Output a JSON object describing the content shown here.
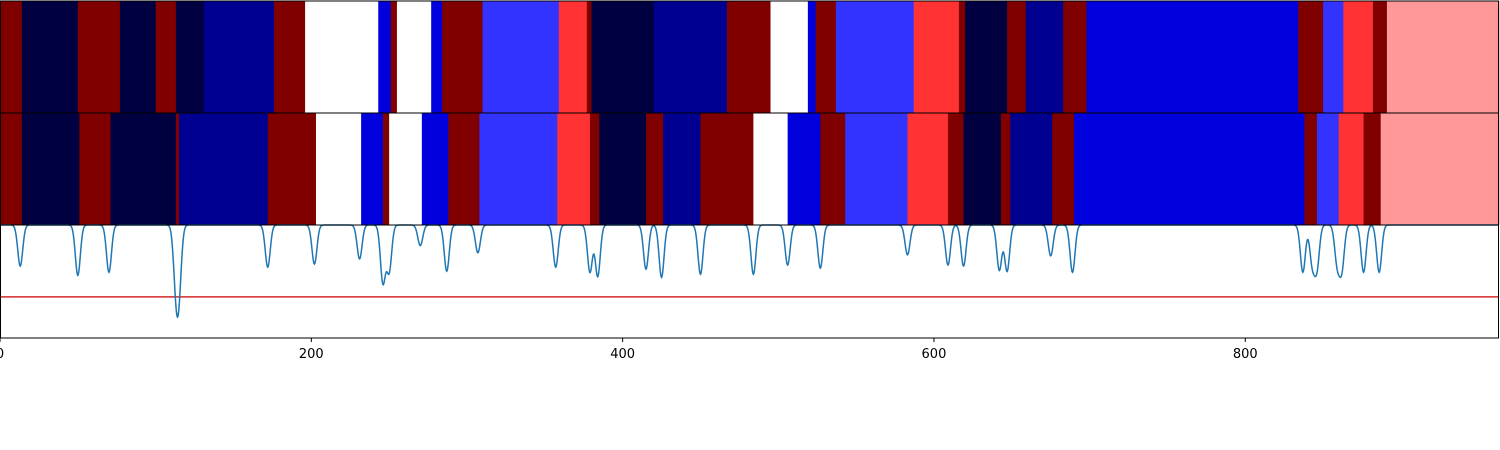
{
  "chart_data": {
    "type": "heatmap",
    "xlim": [
      0,
      963
    ],
    "x_ticks": [
      0,
      200,
      400,
      600,
      800
    ],
    "x_tick_labels": [
      "0",
      "200",
      "400",
      "600",
      "800"
    ],
    "grid": false,
    "legend": "none",
    "colors": {
      "axes": "#000000",
      "signal": "#1f77b4",
      "threshold": "#d62728"
    },
    "strips": [
      {
        "name": "strip-top",
        "segments": [
          {
            "start": 0,
            "end": 14,
            "color": "#800000"
          },
          {
            "start": 14,
            "end": 50,
            "color": "#000040"
          },
          {
            "start": 50,
            "end": 77,
            "color": "#800000"
          },
          {
            "start": 77,
            "end": 100,
            "color": "#000040"
          },
          {
            "start": 100,
            "end": 113,
            "color": "#800000"
          },
          {
            "start": 113,
            "end": 131,
            "color": "#000040"
          },
          {
            "start": 131,
            "end": 176,
            "color": "#000090"
          },
          {
            "start": 176,
            "end": 196,
            "color": "#800000"
          },
          {
            "start": 196,
            "end": 243,
            "color": "#ffffff"
          },
          {
            "start": 243,
            "end": 251,
            "color": "#0000dd"
          },
          {
            "start": 251,
            "end": 255,
            "color": "#800000"
          },
          {
            "start": 255,
            "end": 277,
            "color": "#ffffff"
          },
          {
            "start": 277,
            "end": 284,
            "color": "#0000dd"
          },
          {
            "start": 284,
            "end": 310,
            "color": "#800000"
          },
          {
            "start": 310,
            "end": 359,
            "color": "#3333ff"
          },
          {
            "start": 359,
            "end": 377,
            "color": "#ff3333"
          },
          {
            "start": 377,
            "end": 380,
            "color": "#800000"
          },
          {
            "start": 380,
            "end": 420,
            "color": "#000040"
          },
          {
            "start": 420,
            "end": 467,
            "color": "#000090"
          },
          {
            "start": 467,
            "end": 495,
            "color": "#800000"
          },
          {
            "start": 495,
            "end": 519,
            "color": "#ffffff"
          },
          {
            "start": 519,
            "end": 524,
            "color": "#0000dd"
          },
          {
            "start": 524,
            "end": 537,
            "color": "#800000"
          },
          {
            "start": 537,
            "end": 587,
            "color": "#3333ff"
          },
          {
            "start": 587,
            "end": 616,
            "color": "#ff3333"
          },
          {
            "start": 616,
            "end": 620,
            "color": "#800000"
          },
          {
            "start": 620,
            "end": 647,
            "color": "#000040"
          },
          {
            "start": 647,
            "end": 659,
            "color": "#800000"
          },
          {
            "start": 659,
            "end": 683,
            "color": "#000090"
          },
          {
            "start": 683,
            "end": 698,
            "color": "#800000"
          },
          {
            "start": 698,
            "end": 834,
            "color": "#0000dd"
          },
          {
            "start": 834,
            "end": 850,
            "color": "#800000"
          },
          {
            "start": 850,
            "end": 863,
            "color": "#3333ff"
          },
          {
            "start": 863,
            "end": 882,
            "color": "#ff3333"
          },
          {
            "start": 882,
            "end": 891,
            "color": "#800000"
          },
          {
            "start": 891,
            "end": 963,
            "color": "#ff9999"
          }
        ]
      },
      {
        "name": "strip-middle",
        "segments": [
          {
            "start": 0,
            "end": 14,
            "color": "#800000"
          },
          {
            "start": 14,
            "end": 51,
            "color": "#000040"
          },
          {
            "start": 51,
            "end": 71,
            "color": "#800000"
          },
          {
            "start": 71,
            "end": 113,
            "color": "#000040"
          },
          {
            "start": 113,
            "end": 115,
            "color": "#800000"
          },
          {
            "start": 115,
            "end": 172,
            "color": "#000090"
          },
          {
            "start": 172,
            "end": 203,
            "color": "#800000"
          },
          {
            "start": 203,
            "end": 232,
            "color": "#ffffff"
          },
          {
            "start": 232,
            "end": 246,
            "color": "#0000dd"
          },
          {
            "start": 246,
            "end": 250,
            "color": "#800000"
          },
          {
            "start": 250,
            "end": 271,
            "color": "#ffffff"
          },
          {
            "start": 271,
            "end": 288,
            "color": "#0000dd"
          },
          {
            "start": 288,
            "end": 308,
            "color": "#800000"
          },
          {
            "start": 308,
            "end": 358,
            "color": "#3333ff"
          },
          {
            "start": 358,
            "end": 379,
            "color": "#ff3333"
          },
          {
            "start": 379,
            "end": 385,
            "color": "#800000"
          },
          {
            "start": 385,
            "end": 415,
            "color": "#000040"
          },
          {
            "start": 415,
            "end": 426,
            "color": "#800000"
          },
          {
            "start": 426,
            "end": 450,
            "color": "#000090"
          },
          {
            "start": 450,
            "end": 484,
            "color": "#800000"
          },
          {
            "start": 484,
            "end": 506,
            "color": "#ffffff"
          },
          {
            "start": 506,
            "end": 527,
            "color": "#0000dd"
          },
          {
            "start": 527,
            "end": 543,
            "color": "#800000"
          },
          {
            "start": 543,
            "end": 583,
            "color": "#3333ff"
          },
          {
            "start": 583,
            "end": 609,
            "color": "#ff3333"
          },
          {
            "start": 609,
            "end": 619,
            "color": "#800000"
          },
          {
            "start": 619,
            "end": 643,
            "color": "#000040"
          },
          {
            "start": 643,
            "end": 649,
            "color": "#800000"
          },
          {
            "start": 649,
            "end": 676,
            "color": "#000090"
          },
          {
            "start": 676,
            "end": 690,
            "color": "#800000"
          },
          {
            "start": 690,
            "end": 838,
            "color": "#0000dd"
          },
          {
            "start": 838,
            "end": 846,
            "color": "#800000"
          },
          {
            "start": 846,
            "end": 860,
            "color": "#3333ff"
          },
          {
            "start": 860,
            "end": 876,
            "color": "#ff3333"
          },
          {
            "start": 876,
            "end": 887,
            "color": "#800000"
          },
          {
            "start": 887,
            "end": 963,
            "color": "#ff9999"
          }
        ]
      }
    ],
    "signal": {
      "baseline": 1.0,
      "ylim": [
        -0.1,
        1.0
      ],
      "threshold": 0.3,
      "dips": [
        {
          "x": 13,
          "depth": 0.4
        },
        {
          "x": 50,
          "depth": 0.49
        },
        {
          "x": 70,
          "depth": 0.46
        },
        {
          "x": 113,
          "depth": 0.53
        },
        {
          "x": 115,
          "depth": 0.56
        },
        {
          "x": 172,
          "depth": 0.41
        },
        {
          "x": 202,
          "depth": 0.38
        },
        {
          "x": 231,
          "depth": 0.33
        },
        {
          "x": 246,
          "depth": 0.56
        },
        {
          "x": 250,
          "depth": 0.45
        },
        {
          "x": 270,
          "depth": 0.2
        },
        {
          "x": 287,
          "depth": 0.45
        },
        {
          "x": 307,
          "depth": 0.27
        },
        {
          "x": 357,
          "depth": 0.41
        },
        {
          "x": 379,
          "depth": 0.46
        },
        {
          "x": 384,
          "depth": 0.5
        },
        {
          "x": 415,
          "depth": 0.43
        },
        {
          "x": 425,
          "depth": 0.51
        },
        {
          "x": 450,
          "depth": 0.48
        },
        {
          "x": 484,
          "depth": 0.48
        },
        {
          "x": 506,
          "depth": 0.39
        },
        {
          "x": 527,
          "depth": 0.42
        },
        {
          "x": 583,
          "depth": 0.29
        },
        {
          "x": 609,
          "depth": 0.39
        },
        {
          "x": 619,
          "depth": 0.4
        },
        {
          "x": 642,
          "depth": 0.44
        },
        {
          "x": 647,
          "depth": 0.45
        },
        {
          "x": 675,
          "depth": 0.3
        },
        {
          "x": 689,
          "depth": 0.46
        },
        {
          "x": 837,
          "depth": 0.46
        },
        {
          "x": 843,
          "depth": 0.36
        },
        {
          "x": 846,
          "depth": 0.41
        },
        {
          "x": 859,
          "depth": 0.36
        },
        {
          "x": 862,
          "depth": 0.42
        },
        {
          "x": 876,
          "depth": 0.46
        },
        {
          "x": 886,
          "depth": 0.46
        }
      ]
    }
  }
}
